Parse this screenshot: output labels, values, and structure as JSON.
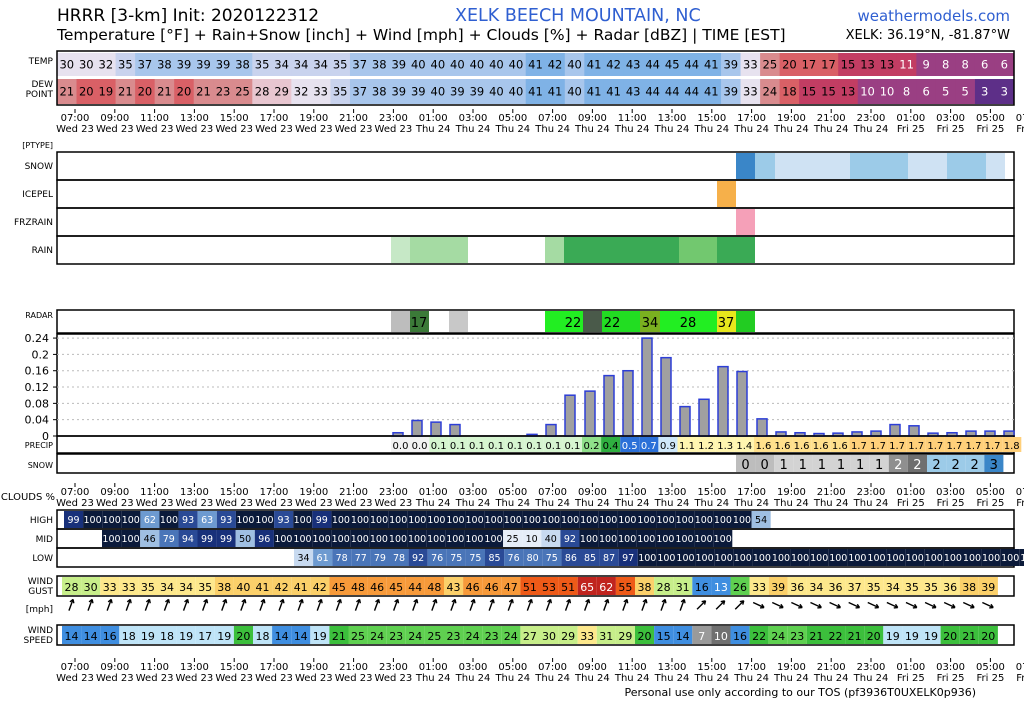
{
  "header": {
    "model": "HRRR [3-km] Init: 2020122312",
    "subtitle": "Temperature [°F] + Rain+Snow [inch] + Wind [mph] + Clouds [%] + Radar [dBZ] | TIME [EST]",
    "location": "XELK BEECH MOUNTAIN, NC",
    "site": "weathermodels.com",
    "coords": "XELK: 36.19°N, -81.87°W"
  },
  "footer": {
    "tos": "Personal use only according to our TOS (pf3936T0UXELK0p936)"
  },
  "chart_data": {
    "type": "table",
    "time_labels": [
      {
        "time": "07:00",
        "day": "Wed 23"
      },
      {
        "time": "09:00",
        "day": "Wed 23"
      },
      {
        "time": "11:00",
        "day": "Wed 23"
      },
      {
        "time": "13:00",
        "day": "Wed 23"
      },
      {
        "time": "15:00",
        "day": "Wed 23"
      },
      {
        "time": "17:00",
        "day": "Wed 23"
      },
      {
        "time": "19:00",
        "day": "Wed 23"
      },
      {
        "time": "21:00",
        "day": "Wed 23"
      },
      {
        "time": "23:00",
        "day": "Wed 23"
      },
      {
        "time": "01:00",
        "day": "Thu 24"
      },
      {
        "time": "03:00",
        "day": "Thu 24"
      },
      {
        "time": "05:00",
        "day": "Thu 24"
      },
      {
        "time": "07:00",
        "day": "Thu 24"
      },
      {
        "time": "09:00",
        "day": "Thu 24"
      },
      {
        "time": "11:00",
        "day": "Thu 24"
      },
      {
        "time": "13:00",
        "day": "Thu 24"
      },
      {
        "time": "15:00",
        "day": "Thu 24"
      },
      {
        "time": "17:00",
        "day": "Thu 24"
      },
      {
        "time": "19:00",
        "day": "Thu 24"
      },
      {
        "time": "21:00",
        "day": "Thu 24"
      },
      {
        "time": "23:00",
        "day": "Thu 24"
      },
      {
        "time": "01:00",
        "day": "Fri 25"
      },
      {
        "time": "03:00",
        "day": "Fri 25"
      },
      {
        "time": "05:00",
        "day": "Fri 25"
      },
      {
        "time": "07:00",
        "day": "Fri 25"
      }
    ],
    "rows": {
      "temp": {
        "label": [
          "TEMP"
        ],
        "values": [
          30,
          30,
          32,
          35,
          37,
          38,
          39,
          39,
          39,
          38,
          35,
          34,
          34,
          34,
          35,
          37,
          38,
          39,
          40,
          40,
          40,
          40,
          40,
          40,
          41,
          42,
          40,
          41,
          42,
          43,
          44,
          45,
          44,
          41,
          39,
          33,
          25,
          20,
          17,
          17,
          15,
          13,
          13,
          11,
          9,
          8,
          8,
          6,
          6
        ]
      },
      "dew": {
        "label": [
          "DEW",
          "POINT"
        ],
        "values": [
          21,
          20,
          19,
          21,
          20,
          21,
          20,
          21,
          23,
          25,
          28,
          29,
          32,
          33,
          35,
          37,
          38,
          39,
          39,
          40,
          39,
          39,
          40,
          40,
          41,
          41,
          40,
          41,
          41,
          43,
          44,
          44,
          44,
          41,
          39,
          33,
          24,
          18,
          15,
          15,
          13,
          10,
          10,
          8,
          6,
          5,
          5,
          3,
          3
        ]
      },
      "precip_total": {
        "label": "PRECIP",
        "values": [
          0.0,
          0.0,
          0.1,
          0.1,
          0.1,
          0.1,
          0.1,
          0.1,
          0.1,
          0.1,
          0.2,
          0.4,
          0.5,
          0.7,
          0.9,
          1.1,
          1.2,
          1.3,
          1.4,
          1.6,
          1.6,
          1.6,
          1.6,
          1.6,
          1.7,
          1.7,
          1.7,
          1.7,
          1.7,
          1.7,
          1.7,
          1.7,
          1.8
        ]
      },
      "snow_total": {
        "label": "SNOW",
        "values": [
          0,
          0,
          1,
          1,
          1,
          1,
          1,
          1,
          2,
          2,
          2,
          2,
          2,
          3
        ]
      },
      "radar": {
        "label": "RADAR",
        "values": [
          17,
          22,
          22,
          34,
          28,
          37
        ]
      },
      "cloud_high": {
        "label": "HIGH",
        "values": [
          99,
          100,
          100,
          100,
          62,
          100,
          93,
          63,
          93,
          100,
          100,
          93,
          100,
          99,
          100,
          100,
          100,
          100,
          100,
          100,
          100,
          100,
          100,
          100,
          100,
          100,
          100,
          100,
          100,
          100,
          100,
          100,
          100,
          100,
          100,
          100,
          54
        ]
      },
      "cloud_mid": {
        "label": "MID",
        "values": [
          100,
          100,
          46,
          79,
          94,
          99,
          99,
          50,
          96,
          100,
          100,
          100,
          100,
          100,
          100,
          100,
          100,
          100,
          100,
          100,
          100,
          25,
          10,
          40,
          92,
          100,
          100,
          100,
          100,
          100,
          100,
          100,
          100
        ]
      },
      "cloud_low": {
        "label": "LOW",
        "values": [
          34,
          61,
          78,
          77,
          79,
          78,
          92,
          76,
          75,
          75,
          85,
          76,
          80,
          75,
          86,
          85,
          87,
          97,
          100,
          100,
          100,
          100,
          100,
          100,
          100,
          100,
          100,
          100,
          100,
          100,
          100,
          100,
          100,
          100,
          100,
          100,
          100,
          100,
          100,
          100
        ]
      },
      "wind_gust": {
        "label": [
          "WIND",
          "GUST"
        ],
        "values": [
          28,
          30,
          33,
          33,
          35,
          34,
          34,
          35,
          38,
          40,
          41,
          42,
          41,
          42,
          45,
          48,
          46,
          45,
          44,
          48,
          43,
          46,
          46,
          47,
          51,
          53,
          51,
          65,
          62,
          55,
          38,
          28,
          31,
          16,
          13,
          26,
          33,
          39,
          36,
          34,
          36,
          37,
          35,
          34,
          35,
          35,
          36,
          38,
          39
        ]
      },
      "wind_speed": {
        "label": [
          "WIND",
          "SPEED"
        ],
        "values": [
          14,
          14,
          16,
          18,
          19,
          18,
          19,
          17,
          19,
          20,
          18,
          14,
          14,
          19,
          21,
          25,
          24,
          23,
          24,
          25,
          23,
          24,
          23,
          24,
          27,
          30,
          29,
          33,
          31,
          29,
          20,
          15,
          14,
          7,
          10,
          16,
          22,
          24,
          23,
          21,
          22,
          21,
          20,
          19,
          19,
          19,
          20,
          21,
          20
        ]
      },
      "ptype": {
        "label": "[PTYPE]",
        "categories": [
          "SNOW",
          "ICEPEL",
          "FRZRAIN",
          "RAIN"
        ]
      },
      "clouds_label": "CLOUDS %",
      "wind_unit": "[mph]"
    },
    "precip_axis": {
      "ylim": [
        0,
        0.25
      ],
      "ticks": [
        "0",
        "0.04",
        "0.08",
        "0.12",
        "0.16",
        "0.2",
        "0.24"
      ]
    },
    "colors": {
      "bar": "#a0a0a0",
      "bar_edge": "#2d3ed6",
      "title": "#2f5fd1",
      "snow": "#3a86c8",
      "rain": "#3aaa55",
      "icepel": "#f6b04a",
      "frzrain": "#f5a0b8"
    }
  }
}
